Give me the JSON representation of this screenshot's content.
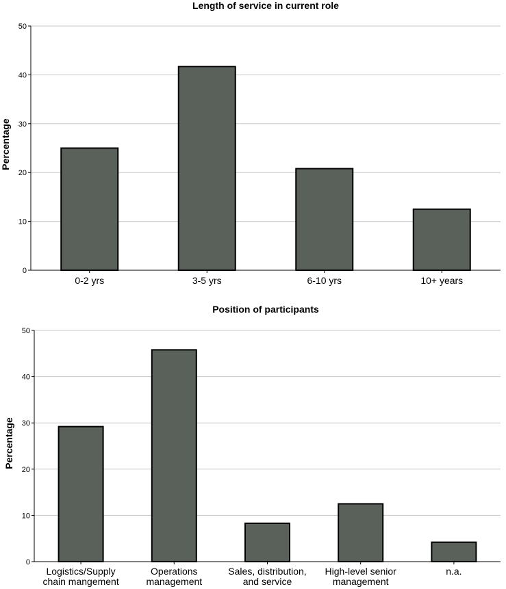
{
  "chart_data": [
    {
      "type": "bar",
      "title": "Length of service in current role",
      "xlabel": "",
      "ylabel": "Percentage",
      "ylim": [
        0,
        50
      ],
      "yticks": [
        0,
        10,
        20,
        30,
        40,
        50
      ],
      "grid": true,
      "bar_color": "#5a615b",
      "categories": [
        [
          "0-2 yrs"
        ],
        [
          "3-5 yrs"
        ],
        [
          "6-10 yrs"
        ],
        [
          "10+ years"
        ]
      ],
      "values": [
        25.0,
        41.7,
        20.8,
        12.5
      ]
    },
    {
      "type": "bar",
      "title": "Position of participants",
      "xlabel": "",
      "ylabel": "Percentage",
      "ylim": [
        0,
        50
      ],
      "yticks": [
        0,
        10,
        20,
        30,
        40,
        50
      ],
      "grid": true,
      "bar_color": "#5a615b",
      "categories": [
        [
          "Logistics/Supply",
          "chain mangement"
        ],
        [
          "Operations",
          "management"
        ],
        [
          "Sales, distribution,",
          "and service"
        ],
        [
          "High-level senior",
          "management"
        ],
        [
          "n.a."
        ]
      ],
      "values": [
        29.2,
        45.8,
        8.3,
        12.5,
        4.2
      ]
    }
  ]
}
